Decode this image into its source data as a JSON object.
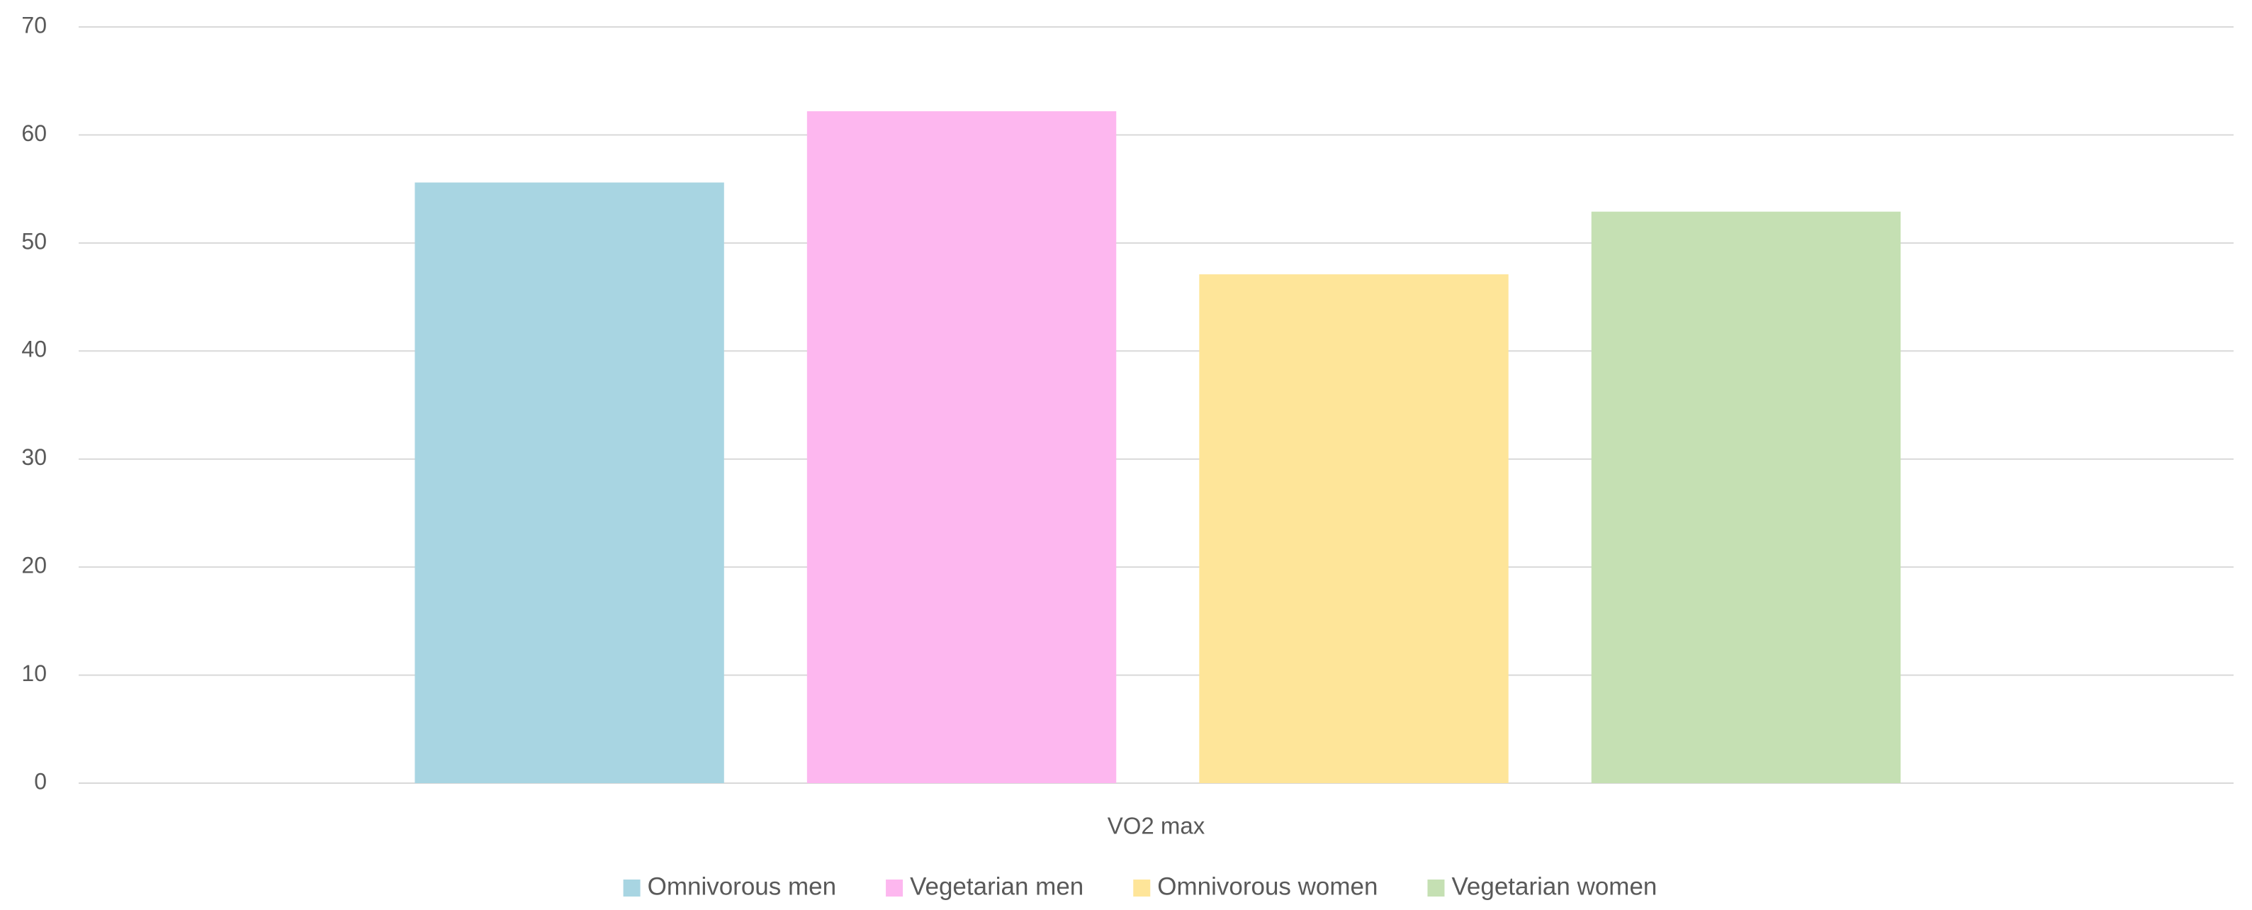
{
  "chart_data": {
    "type": "bar",
    "categories": [
      "VO2 max"
    ],
    "series": [
      {
        "name": "Omnivorous men",
        "color": "#a8d5e2",
        "values": [
          55.6
        ]
      },
      {
        "name": "Vegetarian men",
        "color": "#fdb7ef",
        "values": [
          62.2
        ]
      },
      {
        "name": "Omnivorous women",
        "color": "#fee599",
        "values": [
          47.1
        ]
      },
      {
        "name": "Vegetarian women",
        "color": "#c5e0b3",
        "values": [
          52.9
        ]
      }
    ],
    "ylim": [
      0,
      70
    ],
    "yticks": [
      0,
      10,
      20,
      30,
      40,
      50,
      60,
      70
    ],
    "grid": true,
    "legend": "bottom"
  }
}
